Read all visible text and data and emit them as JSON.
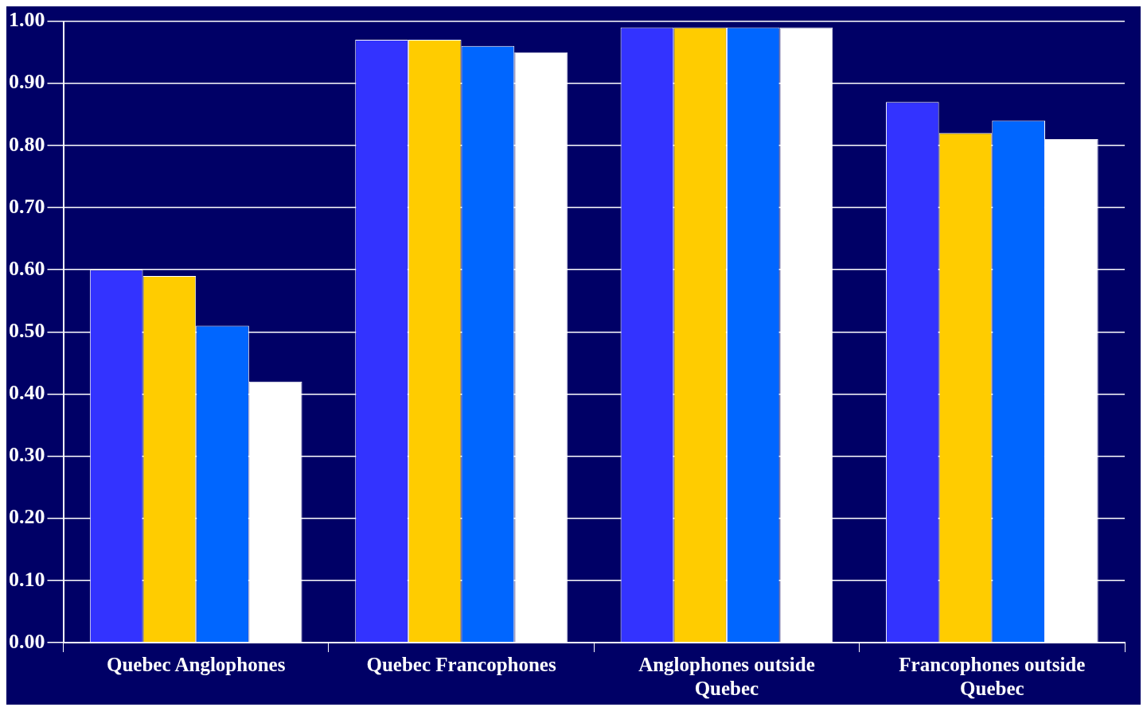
{
  "chart_data": {
    "type": "bar",
    "categories": [
      "Quebec Anglophones",
      "Quebec Francophones",
      "Anglophones outside Quebec",
      "Francophones outside Quebec"
    ],
    "series": [
      {
        "color": "#3333ff",
        "values": [
          0.6,
          0.97,
          0.99,
          0.87
        ]
      },
      {
        "color": "#ffcc00",
        "values": [
          0.59,
          0.97,
          0.99,
          0.82
        ]
      },
      {
        "color": "#0066ff",
        "values": [
          0.51,
          0.96,
          0.99,
          0.84
        ]
      },
      {
        "color": "#ffffff",
        "values": [
          0.42,
          0.95,
          0.99,
          0.81
        ]
      }
    ],
    "ylim": [
      0,
      1
    ],
    "yticks": [
      {
        "value": 0,
        "label": "0.00"
      },
      {
        "value": 0.1,
        "label": "0.10"
      },
      {
        "value": 0.2,
        "label": "0.20"
      },
      {
        "value": 0.3,
        "label": "0.30"
      },
      {
        "value": 0.4,
        "label": "0.40"
      },
      {
        "value": 0.5,
        "label": "0.50"
      },
      {
        "value": 0.6,
        "label": "0.60"
      },
      {
        "value": 0.7,
        "label": "0.70"
      },
      {
        "value": 0.8,
        "label": "0.80"
      },
      {
        "value": 0.9,
        "label": "0.90"
      },
      {
        "value": 1,
        "label": "1.00"
      }
    ],
    "grid": "y",
    "legend": false
  }
}
